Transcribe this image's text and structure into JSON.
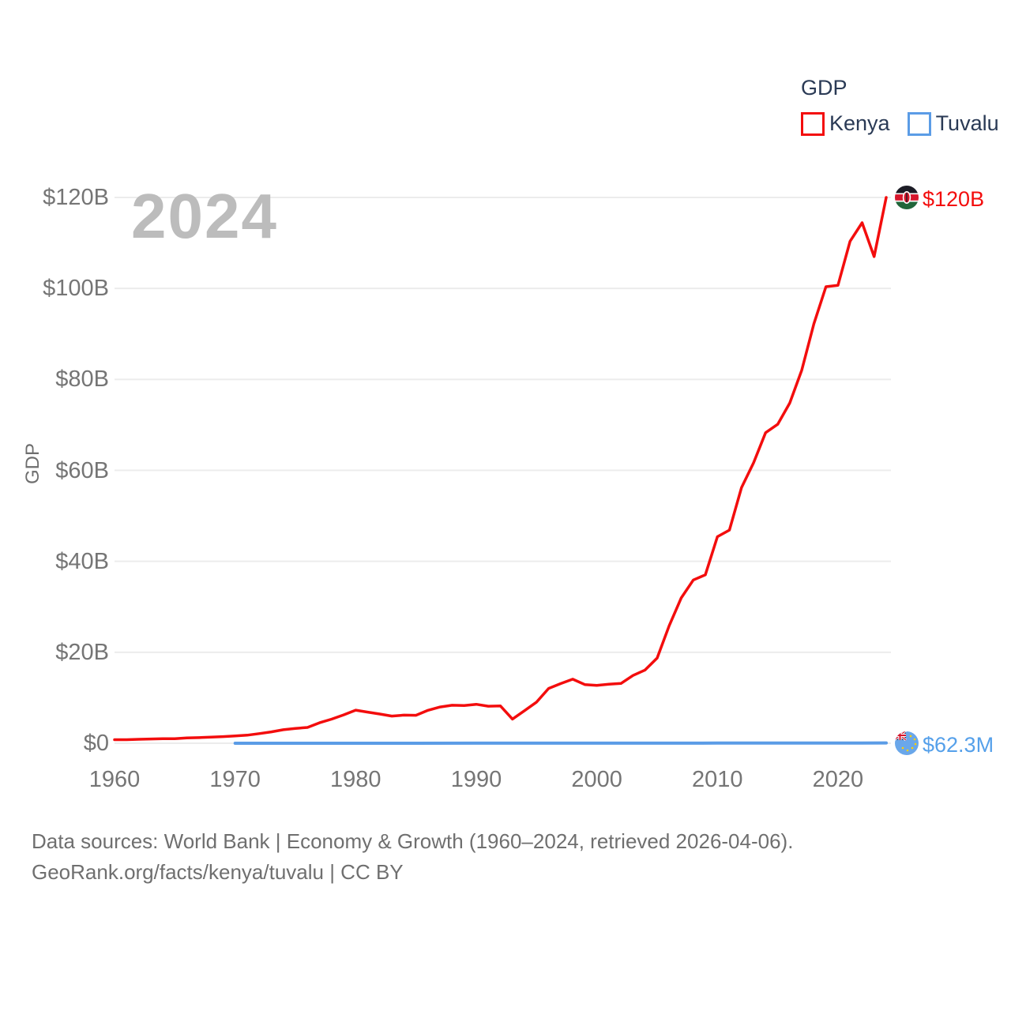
{
  "legend": {
    "title": "GDP",
    "items": [
      {
        "label": "Kenya",
        "color": "#f30d0d"
      },
      {
        "label": "Tuvalu",
        "color": "#5b9ce6"
      }
    ]
  },
  "watermark": "2024",
  "axis": {
    "y_label": "GDP",
    "y_ticks": [
      {
        "label": "$0",
        "value": 0
      },
      {
        "label": "$20B",
        "value": 20
      },
      {
        "label": "$40B",
        "value": 40
      },
      {
        "label": "$60B",
        "value": 60
      },
      {
        "label": "$80B",
        "value": 80
      },
      {
        "label": "$100B",
        "value": 100
      },
      {
        "label": "$120B",
        "value": 120
      }
    ],
    "x_ticks": [
      {
        "label": "1960",
        "value": 1960
      },
      {
        "label": "1970",
        "value": 1970
      },
      {
        "label": "1980",
        "value": 1980
      },
      {
        "label": "1990",
        "value": 1990
      },
      {
        "label": "2000",
        "value": 2000
      },
      {
        "label": "2010",
        "value": 2010
      },
      {
        "label": "2020",
        "value": 2020
      }
    ]
  },
  "end_labels": {
    "kenya": {
      "text": "$120B",
      "color": "#f30d0d",
      "flag": "kenya-flag-icon"
    },
    "tuvalu": {
      "text": "$62.3M",
      "color": "#55a0ea",
      "flag": "tuvalu-flag-icon"
    }
  },
  "footer": {
    "line1": "Data sources: World Bank | Economy & Growth (1960–2024, retrieved 2026-04-06).",
    "line2": "GeoRank.org/facts/kenya/tuvalu | CC BY"
  },
  "chart_data": {
    "type": "line",
    "title": "GDP",
    "xlabel": "",
    "ylabel": "GDP",
    "x_range": [
      1960,
      2024
    ],
    "ylim_billions": [
      0,
      120
    ],
    "grid": "horizontal",
    "legend_position": "top-right",
    "series": [
      {
        "name": "Kenya",
        "color": "#f30d0d",
        "unit": "billion USD",
        "end_label": "$120B",
        "years": [
          1960,
          1961,
          1962,
          1963,
          1964,
          1965,
          1966,
          1967,
          1968,
          1969,
          1970,
          1971,
          1972,
          1973,
          1974,
          1975,
          1976,
          1977,
          1978,
          1979,
          1980,
          1981,
          1982,
          1983,
          1984,
          1985,
          1986,
          1987,
          1988,
          1989,
          1990,
          1991,
          1992,
          1993,
          1994,
          1995,
          1996,
          1997,
          1998,
          1999,
          2000,
          2001,
          2002,
          2003,
          2004,
          2005,
          2006,
          2007,
          2008,
          2009,
          2010,
          2011,
          2012,
          2013,
          2014,
          2015,
          2016,
          2017,
          2018,
          2019,
          2020,
          2021,
          2022,
          2023,
          2024
        ],
        "values_billion_usd": [
          0.79,
          0.79,
          0.87,
          0.93,
          1.0,
          1.0,
          1.16,
          1.23,
          1.35,
          1.46,
          1.6,
          1.78,
          2.11,
          2.5,
          2.97,
          3.26,
          3.47,
          4.49,
          5.3,
          6.23,
          7.27,
          6.85,
          6.43,
          5.98,
          6.19,
          6.14,
          7.24,
          7.97,
          8.36,
          8.28,
          8.57,
          8.15,
          8.21,
          5.31,
          7.15,
          9.05,
          12.05,
          13.12,
          14.09,
          12.9,
          12.71,
          12.99,
          13.15,
          14.9,
          16.1,
          18.74,
          25.83,
          31.96,
          35.9,
          37.02,
          45.41,
          46.87,
          56.2,
          61.67,
          68.28,
          70.12,
          74.81,
          82.04,
          92.2,
          100.38,
          100.67,
          110.35,
          114.45,
          107.0,
          120.0
        ]
      },
      {
        "name": "Tuvalu",
        "color": "#5b9ce6",
        "unit": "million USD",
        "end_label": "$62.3M",
        "years": [
          1970,
          1975,
          1980,
          1985,
          1990,
          1995,
          2000,
          2005,
          2010,
          2015,
          2020,
          2022,
          2024
        ],
        "values_million_usd": [
          1.2,
          2.2,
          3.9,
          4.4,
          8.8,
          11.0,
          12.0,
          21.5,
          31.8,
          33.0,
          54.8,
          59.5,
          62.3
        ]
      }
    ]
  }
}
